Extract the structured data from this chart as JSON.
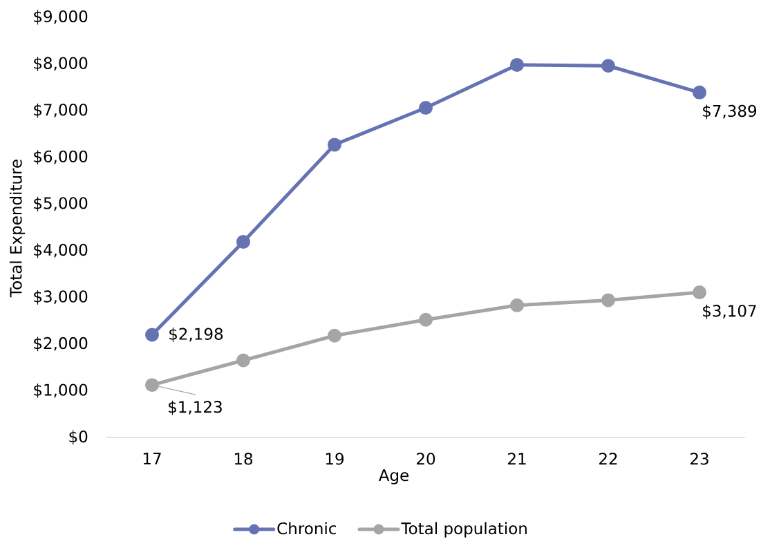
{
  "chart_data": {
    "type": "line",
    "xlabel": "Age",
    "ylabel": "Total Expenditure",
    "categories": [
      "17",
      "18",
      "19",
      "20",
      "21",
      "22",
      "23"
    ],
    "series": [
      {
        "name": "Chronic",
        "color": "#6673b3",
        "values": [
          2198,
          4190,
          6270,
          7060,
          7980,
          7960,
          7389
        ],
        "value_labels": [
          "$2,198",
          null,
          null,
          null,
          null,
          null,
          "$7,389"
        ]
      },
      {
        "name": "Total population",
        "color": "#a5a5a5",
        "values": [
          1123,
          1650,
          2180,
          2520,
          2830,
          2940,
          3107
        ],
        "value_labels": [
          "$1,123",
          null,
          null,
          null,
          null,
          null,
          "$3,107"
        ]
      }
    ],
    "ylim": [
      0,
      9000
    ],
    "yticks": [
      {
        "value": 0,
        "label": "$0"
      },
      {
        "value": 1000,
        "label": "$1,000"
      },
      {
        "value": 2000,
        "label": "$2,000"
      },
      {
        "value": 3000,
        "label": "$3,000"
      },
      {
        "value": 4000,
        "label": "$4,000"
      },
      {
        "value": 5000,
        "label": "$5,000"
      },
      {
        "value": 6000,
        "label": "$6,000"
      },
      {
        "value": 7000,
        "label": "$7,000"
      },
      {
        "value": 8000,
        "label": "$8,000"
      },
      {
        "value": 9000,
        "label": "$9,000"
      }
    ],
    "legend": "bottom",
    "marker": "circle",
    "line_style": "solid"
  }
}
